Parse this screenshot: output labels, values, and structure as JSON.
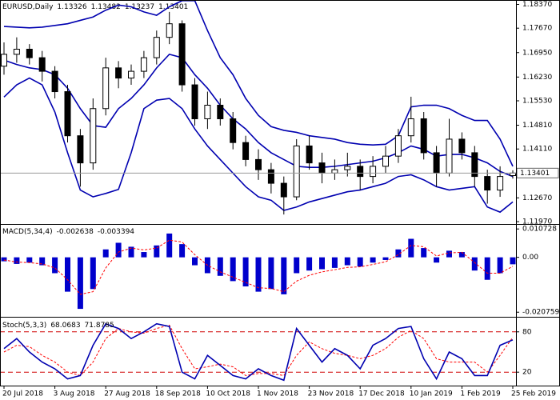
{
  "chart_data": [
    {
      "type": "candlestick",
      "title": "EURUSD,Daily",
      "categories": [
        "20 Jul 2018",
        null,
        null,
        null,
        "3 Aug 2018",
        null,
        null,
        null,
        "27 Aug 2018",
        null,
        null,
        null,
        "18 Sep 2018",
        null,
        null,
        null,
        "10 Oct 2018",
        null,
        null,
        null,
        "1 Nov 2018",
        null,
        null,
        null,
        "23 Nov 2018",
        null,
        null,
        null,
        "17 Dec 2018",
        null,
        null,
        null,
        "10 Jan 2019",
        null,
        null,
        null,
        "1 Feb 2019",
        null,
        null,
        null,
        "25 Feb 2019"
      ],
      "open": [
        1.1655,
        1.169,
        1.1705,
        1.168,
        1.164,
        1.158,
        1.145,
        1.137,
        1.153,
        1.165,
        1.162,
        1.164,
        1.168,
        1.174,
        1.178,
        1.16,
        1.15,
        1.154,
        1.15,
        1.143,
        1.138,
        1.135,
        1.131,
        1.127,
        1.142,
        1.137,
        1.134,
        1.135,
        1.136,
        1.133,
        1.136,
        1.139,
        1.145,
        1.15,
        1.14,
        1.134,
        1.144,
        1.14,
        1.133,
        1.129,
        1.13326
      ],
      "high": [
        1.1725,
        1.174,
        1.172,
        1.17,
        1.1655,
        1.16,
        1.147,
        1.156,
        1.168,
        1.167,
        1.166,
        1.17,
        1.176,
        1.1815,
        1.179,
        1.162,
        1.158,
        1.156,
        1.152,
        1.145,
        1.141,
        1.137,
        1.133,
        1.144,
        1.145,
        1.14,
        1.138,
        1.14,
        1.138,
        1.139,
        1.142,
        1.147,
        1.1565,
        1.152,
        1.142,
        1.15,
        1.146,
        1.142,
        1.135,
        1.136,
        1.13482
      ],
      "low": [
        1.163,
        1.1665,
        1.166,
        1.161,
        1.156,
        1.143,
        1.13,
        1.135,
        1.151,
        1.159,
        1.16,
        1.162,
        1.166,
        1.172,
        1.158,
        1.148,
        1.147,
        1.148,
        1.141,
        1.136,
        1.132,
        1.128,
        1.1218,
        1.126,
        1.135,
        1.131,
        1.132,
        1.133,
        1.129,
        1.131,
        1.134,
        1.137,
        1.143,
        1.138,
        1.13,
        1.133,
        1.138,
        1.13,
        1.125,
        1.127,
        1.13237
      ],
      "close": [
        1.169,
        1.1705,
        1.168,
        1.164,
        1.158,
        1.145,
        1.137,
        1.153,
        1.165,
        1.162,
        1.164,
        1.168,
        1.174,
        1.178,
        1.16,
        1.15,
        1.154,
        1.15,
        1.143,
        1.138,
        1.135,
        1.131,
        1.127,
        1.142,
        1.137,
        1.134,
        1.135,
        1.136,
        1.133,
        1.136,
        1.139,
        1.145,
        1.15,
        1.14,
        1.134,
        1.144,
        1.14,
        1.133,
        1.129,
        1.133,
        1.13401
      ],
      "candle_color": "#000000",
      "series": [
        {
          "color": "#0000b0",
          "values": [
            1.1772,
            1.177,
            1.1768,
            1.177,
            1.1775,
            1.178,
            1.179,
            1.18,
            1.182,
            1.1835,
            1.183,
            1.1815,
            1.1805,
            1.183,
            1.1848,
            1.1848,
            1.176,
            1.168,
            1.163,
            1.156,
            1.151,
            1.1477,
            1.1466,
            1.146,
            1.145,
            1.1445,
            1.144,
            1.143,
            1.1425,
            1.1423,
            1.1425,
            1.145,
            1.1535,
            1.154,
            1.154,
            1.153,
            1.151,
            1.1495,
            1.1495,
            1.144,
            1.136
          ]
        },
        {
          "color": "#0000b0",
          "values": [
            1.1673,
            1.166,
            1.165,
            1.1645,
            1.163,
            1.159,
            1.153,
            1.148,
            1.1475,
            1.153,
            1.156,
            1.16,
            1.165,
            1.169,
            1.168,
            1.163,
            1.159,
            1.154,
            1.15,
            1.147,
            1.143,
            1.14,
            1.138,
            1.136,
            1.1357,
            1.1357,
            1.136,
            1.1365,
            1.137,
            1.1375,
            1.1385,
            1.14,
            1.142,
            1.141,
            1.139,
            1.1395,
            1.1395,
            1.1385,
            1.137,
            1.1345,
            1.133
          ]
        },
        {
          "color": "#0000b0",
          "values": [
            1.1564,
            1.16,
            1.162,
            1.16,
            1.152,
            1.14,
            1.129,
            1.127,
            1.128,
            1.1292,
            1.14,
            1.153,
            1.1555,
            1.156,
            1.153,
            1.147,
            1.142,
            1.138,
            1.134,
            1.13,
            1.127,
            1.126,
            1.123,
            1.124,
            1.1255,
            1.1265,
            1.1275,
            1.1285,
            1.129,
            1.13,
            1.131,
            1.133,
            1.1335,
            1.132,
            1.13,
            1.129,
            1.1295,
            1.13,
            1.124,
            1.1225,
            1.1255
          ]
        }
      ],
      "ylim": [
        1.119,
        1.185
      ],
      "yticks": [
        {
          "value": 1.1837,
          "label": "1.18370"
        },
        {
          "value": 1.1767,
          "label": "1.17670"
        },
        {
          "value": 1.1695,
          "label": "1.16950"
        },
        {
          "value": 1.1623,
          "label": "1.16230"
        },
        {
          "value": 1.1553,
          "label": "1.15530"
        },
        {
          "value": 1.1481,
          "label": "1.14810"
        },
        {
          "value": 1.1411,
          "label": "1.14110"
        },
        {
          "value": 1.1267,
          "label": "1.12670"
        },
        {
          "value": 1.1197,
          "label": "1.11970"
        }
      ]
    },
    {
      "type": "macd",
      "title": "MACD(5,34,4)",
      "series": [
        {
          "color": "#0000cc",
          "values": [
            -0.0015,
            -0.0025,
            -0.002,
            -0.003,
            -0.006,
            -0.013,
            -0.0195,
            -0.012,
            0.003,
            0.0055,
            0.004,
            0.002,
            0.0045,
            0.009,
            0.005,
            -0.003,
            -0.006,
            -0.007,
            -0.009,
            -0.011,
            -0.013,
            -0.012,
            -0.014,
            -0.006,
            -0.005,
            -0.0045,
            -0.004,
            -0.003,
            -0.0035,
            -0.002,
            -0.001,
            0.003,
            0.007,
            0.0035,
            -0.002,
            0.0025,
            0.002,
            -0.005,
            -0.0085,
            -0.006,
            -0.002638
          ]
        },
        {
          "color": "#ff0000",
          "values": [
            -0.001,
            -0.0018,
            -0.002,
            -0.0025,
            -0.004,
            -0.0085,
            -0.014,
            -0.013,
            -0.004,
            0.002,
            0.0035,
            0.0028,
            0.0035,
            0.0065,
            0.0058,
            0.001,
            -0.003,
            -0.0055,
            -0.0075,
            -0.0095,
            -0.0115,
            -0.0118,
            -0.013,
            -0.009,
            -0.0068,
            -0.0055,
            -0.0047,
            -0.0038,
            -0.0036,
            -0.0027,
            -0.0017,
            0.001,
            0.0045,
            0.004,
            0.0005,
            0.0017,
            0.0019,
            -0.002,
            -0.006,
            -0.006,
            -0.003394
          ]
        }
      ],
      "ylim": [
        -0.0225,
        0.012
      ],
      "yticks": [
        0.010728,
        {
          "value": 0,
          "label": "0.00"
        },
        -0.020759
      ]
    },
    {
      "type": "stochastic",
      "title": "Stoch(5,3,3)",
      "series": [
        {
          "color": "#0000b0",
          "values": [
            55,
            70,
            50,
            35,
            25,
            10,
            15,
            60,
            92,
            85,
            70,
            80,
            92,
            88,
            20,
            10,
            45,
            30,
            15,
            10,
            25,
            15,
            8,
            85,
            60,
            35,
            55,
            45,
            25,
            60,
            70,
            85,
            88,
            40,
            10,
            50,
            40,
            15,
            15,
            60,
            68.0683
          ]
        },
        {
          "color": "#ff0000",
          "values": [
            50,
            60,
            58,
            45,
            35,
            20,
            15,
            35,
            70,
            85,
            80,
            78,
            85,
            90,
            55,
            25,
            28,
            32,
            28,
            15,
            18,
            18,
            15,
            45,
            65,
            55,
            48,
            45,
            40,
            45,
            55,
            72,
            82,
            70,
            40,
            35,
            35,
            35,
            20,
            45,
            71.8785
          ]
        }
      ],
      "ylim": [
        0,
        100
      ],
      "yticks": [
        80,
        20
      ],
      "level_color": "#d00000"
    }
  ]
}
